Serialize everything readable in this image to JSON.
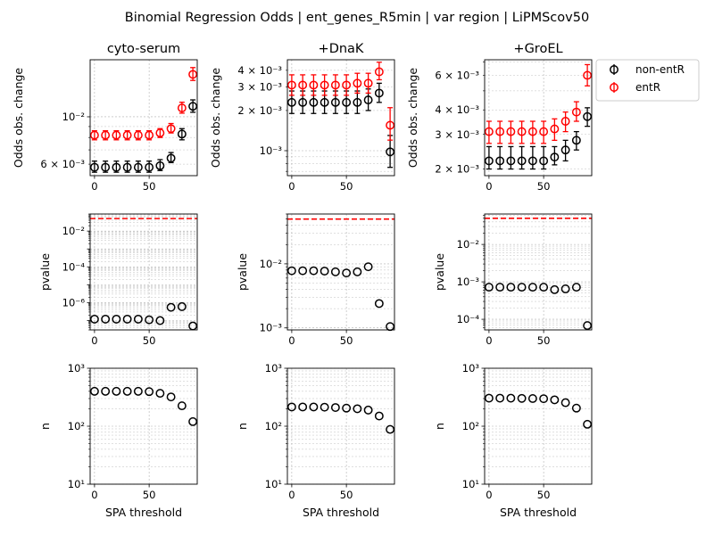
{
  "suptitle": "Binomial Regression Odds | ent_genes_R5min | var region | LiPMScov50",
  "legend": {
    "position": "upper-right-outside",
    "entries": [
      {
        "label": "non-entR",
        "color": "#000000"
      },
      {
        "label": "entR",
        "color": "#ff0000"
      }
    ]
  },
  "chart_data": [
    {
      "type": "scatter",
      "panel": "odds-cyto-serum",
      "title": "cyto-serum",
      "xlabel": "",
      "ylabel": "Odds obs. change",
      "yscale": "log",
      "ylim": [
        0.0053,
        0.0185
      ],
      "xlim": [
        -4,
        94
      ],
      "grid": true,
      "xticks": [
        0,
        50
      ],
      "xticklabels": [
        "0",
        "50"
      ],
      "yticks": [
        0.006,
        0.01
      ],
      "yticklabels": [
        "6 × 10⁻³",
        "10⁻²"
      ],
      "x": [
        0,
        10,
        20,
        30,
        40,
        50,
        60,
        70,
        80,
        90
      ],
      "series": [
        {
          "name": "non-entR",
          "color": "#000000",
          "y": [
            0.0058,
            0.0058,
            0.0058,
            0.0058,
            0.0058,
            0.0058,
            0.0059,
            0.0064,
            0.0083,
            0.0112
          ],
          "yerr_low": [
            0.0055,
            0.0055,
            0.0055,
            0.0055,
            0.0055,
            0.0055,
            0.0056,
            0.0061,
            0.0078,
            0.0105
          ],
          "yerr_high": [
            0.0062,
            0.0062,
            0.0062,
            0.0062,
            0.0062,
            0.0062,
            0.0063,
            0.0068,
            0.0088,
            0.012
          ]
        },
        {
          "name": "entR",
          "color": "#ff0000",
          "y": [
            0.0082,
            0.0082,
            0.0082,
            0.0082,
            0.0082,
            0.0082,
            0.0084,
            0.0088,
            0.011,
            0.0158
          ],
          "yerr_low": [
            0.0078,
            0.0078,
            0.0078,
            0.0078,
            0.0078,
            0.0078,
            0.008,
            0.0084,
            0.0104,
            0.0148
          ],
          "yerr_high": [
            0.0086,
            0.0086,
            0.0086,
            0.0086,
            0.0086,
            0.0086,
            0.0088,
            0.0093,
            0.0117,
            0.017
          ]
        }
      ]
    },
    {
      "type": "scatter",
      "panel": "odds-dnak",
      "title": "+DnaK",
      "xlabel": "",
      "ylabel": "Odds obs. change",
      "yscale": "log",
      "ylim": [
        0.00065,
        0.0048
      ],
      "xlim": [
        -4,
        94
      ],
      "grid": true,
      "xticks": [
        0,
        50
      ],
      "xticklabels": [
        "0",
        "50"
      ],
      "yticks": [
        0.001,
        0.002,
        0.003,
        0.004
      ],
      "yticklabels": [
        "10⁻³",
        "2 × 10⁻³",
        "3 × 10⁻³",
        "4 × 10⁻³"
      ],
      "x": [
        0,
        10,
        20,
        30,
        40,
        50,
        60,
        70,
        80,
        90
      ],
      "series": [
        {
          "name": "non-entR",
          "color": "#000000",
          "y": [
            0.0023,
            0.0023,
            0.0023,
            0.0023,
            0.0023,
            0.0023,
            0.0023,
            0.0024,
            0.0027,
            0.00098
          ],
          "yerr_low": [
            0.0019,
            0.0019,
            0.0019,
            0.0019,
            0.0019,
            0.0019,
            0.0019,
            0.002,
            0.0023,
            0.00075
          ],
          "yerr_high": [
            0.0028,
            0.0028,
            0.0028,
            0.0028,
            0.0028,
            0.0028,
            0.0028,
            0.0029,
            0.0032,
            0.0013
          ]
        },
        {
          "name": "entR",
          "color": "#ff0000",
          "y": [
            0.0031,
            0.0031,
            0.0031,
            0.0031,
            0.0031,
            0.0031,
            0.0032,
            0.0032,
            0.0039,
            0.00155
          ],
          "yerr_low": [
            0.0026,
            0.0026,
            0.0026,
            0.0026,
            0.0026,
            0.0026,
            0.0027,
            0.0027,
            0.0034,
            0.0012
          ],
          "yerr_high": [
            0.0037,
            0.0037,
            0.0037,
            0.0037,
            0.0037,
            0.0037,
            0.0038,
            0.0038,
            0.0046,
            0.0021
          ]
        }
      ]
    },
    {
      "type": "scatter",
      "panel": "odds-groel",
      "title": "+GroEL",
      "xlabel": "",
      "ylabel": "Odds obs. change",
      "yscale": "log",
      "ylim": [
        0.00185,
        0.0072
      ],
      "xlim": [
        -4,
        94
      ],
      "grid": true,
      "xticks": [
        0,
        50
      ],
      "xticklabels": [
        "0",
        "50"
      ],
      "yticks": [
        0.002,
        0.003,
        0.004,
        0.006
      ],
      "yticklabels": [
        "2 × 10⁻³",
        "3 × 10⁻³",
        "4 × 10⁻³",
        "6 × 10⁻³"
      ],
      "x": [
        0,
        10,
        20,
        30,
        40,
        50,
        60,
        70,
        80,
        90
      ],
      "series": [
        {
          "name": "non-entR",
          "color": "#000000",
          "y": [
            0.0022,
            0.0022,
            0.0022,
            0.0022,
            0.0022,
            0.0022,
            0.0023,
            0.0025,
            0.0028,
            0.0037
          ],
          "yerr_low": [
            0.002,
            0.002,
            0.002,
            0.002,
            0.002,
            0.002,
            0.0021,
            0.0022,
            0.0025,
            0.0033
          ],
          "yerr_high": [
            0.0026,
            0.0026,
            0.0026,
            0.0026,
            0.0026,
            0.0026,
            0.0026,
            0.0028,
            0.0031,
            0.0041
          ]
        },
        {
          "name": "entR",
          "color": "#ff0000",
          "y": [
            0.0031,
            0.0031,
            0.0031,
            0.0031,
            0.0031,
            0.0031,
            0.0032,
            0.0035,
            0.0039,
            0.006
          ],
          "yerr_low": [
            0.0027,
            0.0027,
            0.0027,
            0.0027,
            0.0027,
            0.0027,
            0.0028,
            0.0031,
            0.0035,
            0.0053
          ],
          "yerr_high": [
            0.0035,
            0.0035,
            0.0035,
            0.0035,
            0.0035,
            0.0035,
            0.0036,
            0.0039,
            0.0044,
            0.0068
          ]
        }
      ]
    },
    {
      "type": "scatter",
      "panel": "pvalue-cyto-serum",
      "title": "",
      "xlabel": "",
      "ylabel": "pvalue",
      "yscale": "log",
      "ylim": [
        3e-08,
        0.09
      ],
      "xlim": [
        -4,
        94
      ],
      "grid": true,
      "xticks": [
        0,
        50
      ],
      "xticklabels": [
        "0",
        "50"
      ],
      "yticks": [
        1e-06,
        0.0001,
        0.01
      ],
      "yticklabels": [
        "10⁻⁶",
        "10⁻⁴",
        "10⁻²"
      ],
      "hline": {
        "y": 0.05,
        "color": "#ff0000",
        "style": "dashed"
      },
      "x": [
        0,
        10,
        20,
        30,
        40,
        50,
        60,
        70,
        80,
        90
      ],
      "series": [
        {
          "name": "",
          "color": "#000000",
          "y": [
            1.2e-07,
            1.2e-07,
            1.2e-07,
            1.2e-07,
            1.2e-07,
            1.1e-07,
            1e-07,
            5.5e-07,
            6e-07,
            5e-08
          ]
        }
      ]
    },
    {
      "type": "scatter",
      "panel": "pvalue-dnak",
      "title": "",
      "xlabel": "",
      "ylabel": "pvalue",
      "yscale": "log",
      "ylim": [
        0.00093,
        0.06
      ],
      "xlim": [
        -4,
        94
      ],
      "grid": true,
      "xticks": [
        0,
        50
      ],
      "xticklabels": [
        "0",
        "50"
      ],
      "yticks": [
        0.001,
        0.01
      ],
      "yticklabels": [
        "10⁻³",
        "10⁻²"
      ],
      "hline": {
        "y": 0.05,
        "color": "#ff0000",
        "style": "dashed"
      },
      "x": [
        0,
        10,
        20,
        30,
        40,
        50,
        60,
        70,
        80,
        90
      ],
      "series": [
        {
          "name": "",
          "color": "#000000",
          "y": [
            0.0078,
            0.0078,
            0.0078,
            0.0077,
            0.0075,
            0.0072,
            0.0075,
            0.009,
            0.0024,
            0.00105
          ]
        }
      ]
    },
    {
      "type": "scatter",
      "panel": "pvalue-groel",
      "title": "",
      "xlabel": "",
      "ylabel": "pvalue",
      "yscale": "log",
      "ylim": [
        5.2e-05,
        0.065
      ],
      "xlim": [
        -4,
        94
      ],
      "grid": true,
      "xticks": [
        0,
        50
      ],
      "xticklabels": [
        "0",
        "50"
      ],
      "yticks": [
        0.0001,
        0.001,
        0.01
      ],
      "yticklabels": [
        "10⁻⁴",
        "10⁻³",
        "10⁻²"
      ],
      "hline": {
        "y": 0.05,
        "color": "#ff0000",
        "style": "dashed"
      },
      "x": [
        0,
        10,
        20,
        30,
        40,
        50,
        60,
        70,
        80,
        90
      ],
      "series": [
        {
          "name": "",
          "color": "#000000",
          "y": [
            0.00072,
            0.00072,
            0.00072,
            0.00072,
            0.00072,
            0.00072,
            0.00062,
            0.00065,
            0.00072,
            6.8e-05
          ]
        }
      ]
    },
    {
      "type": "scatter",
      "panel": "n-cyto-serum",
      "title": "",
      "xlabel": "SPA threshold",
      "ylabel": "n",
      "yscale": "log",
      "ylim": [
        10,
        1000
      ],
      "xlim": [
        -4,
        94
      ],
      "grid": true,
      "xticks": [
        0,
        50
      ],
      "xticklabels": [
        "0",
        "50"
      ],
      "yticks": [
        10,
        100,
        1000
      ],
      "yticklabels": [
        "10¹",
        "10²",
        "10³"
      ],
      "x": [
        0,
        10,
        20,
        30,
        40,
        50,
        60,
        70,
        80,
        90
      ],
      "series": [
        {
          "name": "",
          "color": "#000000",
          "y": [
            400,
            400,
            400,
            400,
            400,
            395,
            370,
            320,
            225,
            120
          ]
        }
      ]
    },
    {
      "type": "scatter",
      "panel": "n-dnak",
      "title": "",
      "xlabel": "SPA threshold",
      "ylabel": "n",
      "yscale": "log",
      "ylim": [
        10,
        1000
      ],
      "xlim": [
        -4,
        94
      ],
      "grid": true,
      "xticks": [
        0,
        50
      ],
      "xticklabels": [
        "0",
        "50"
      ],
      "yticks": [
        10,
        100,
        1000
      ],
      "yticklabels": [
        "10¹",
        "10²",
        "10³"
      ],
      "x": [
        0,
        10,
        20,
        30,
        40,
        50,
        60,
        70,
        80,
        90
      ],
      "series": [
        {
          "name": "",
          "color": "#000000",
          "y": [
            215,
            215,
            215,
            213,
            210,
            205,
            200,
            190,
            150,
            88
          ]
        }
      ]
    },
    {
      "type": "scatter",
      "panel": "n-groel",
      "title": "",
      "xlabel": "SPA threshold",
      "ylabel": "n",
      "yscale": "log",
      "ylim": [
        10,
        1000
      ],
      "xlim": [
        -4,
        94
      ],
      "grid": true,
      "xticks": [
        0,
        50
      ],
      "xticklabels": [
        "0",
        "50"
      ],
      "yticks": [
        10,
        100,
        1000
      ],
      "yticklabels": [
        "10¹",
        "10²",
        "10³"
      ],
      "x": [
        0,
        10,
        20,
        30,
        40,
        50,
        60,
        70,
        80,
        90
      ],
      "series": [
        {
          "name": "",
          "color": "#000000",
          "y": [
            305,
            305,
            305,
            302,
            300,
            298,
            285,
            255,
            205,
            108
          ]
        }
      ]
    }
  ]
}
